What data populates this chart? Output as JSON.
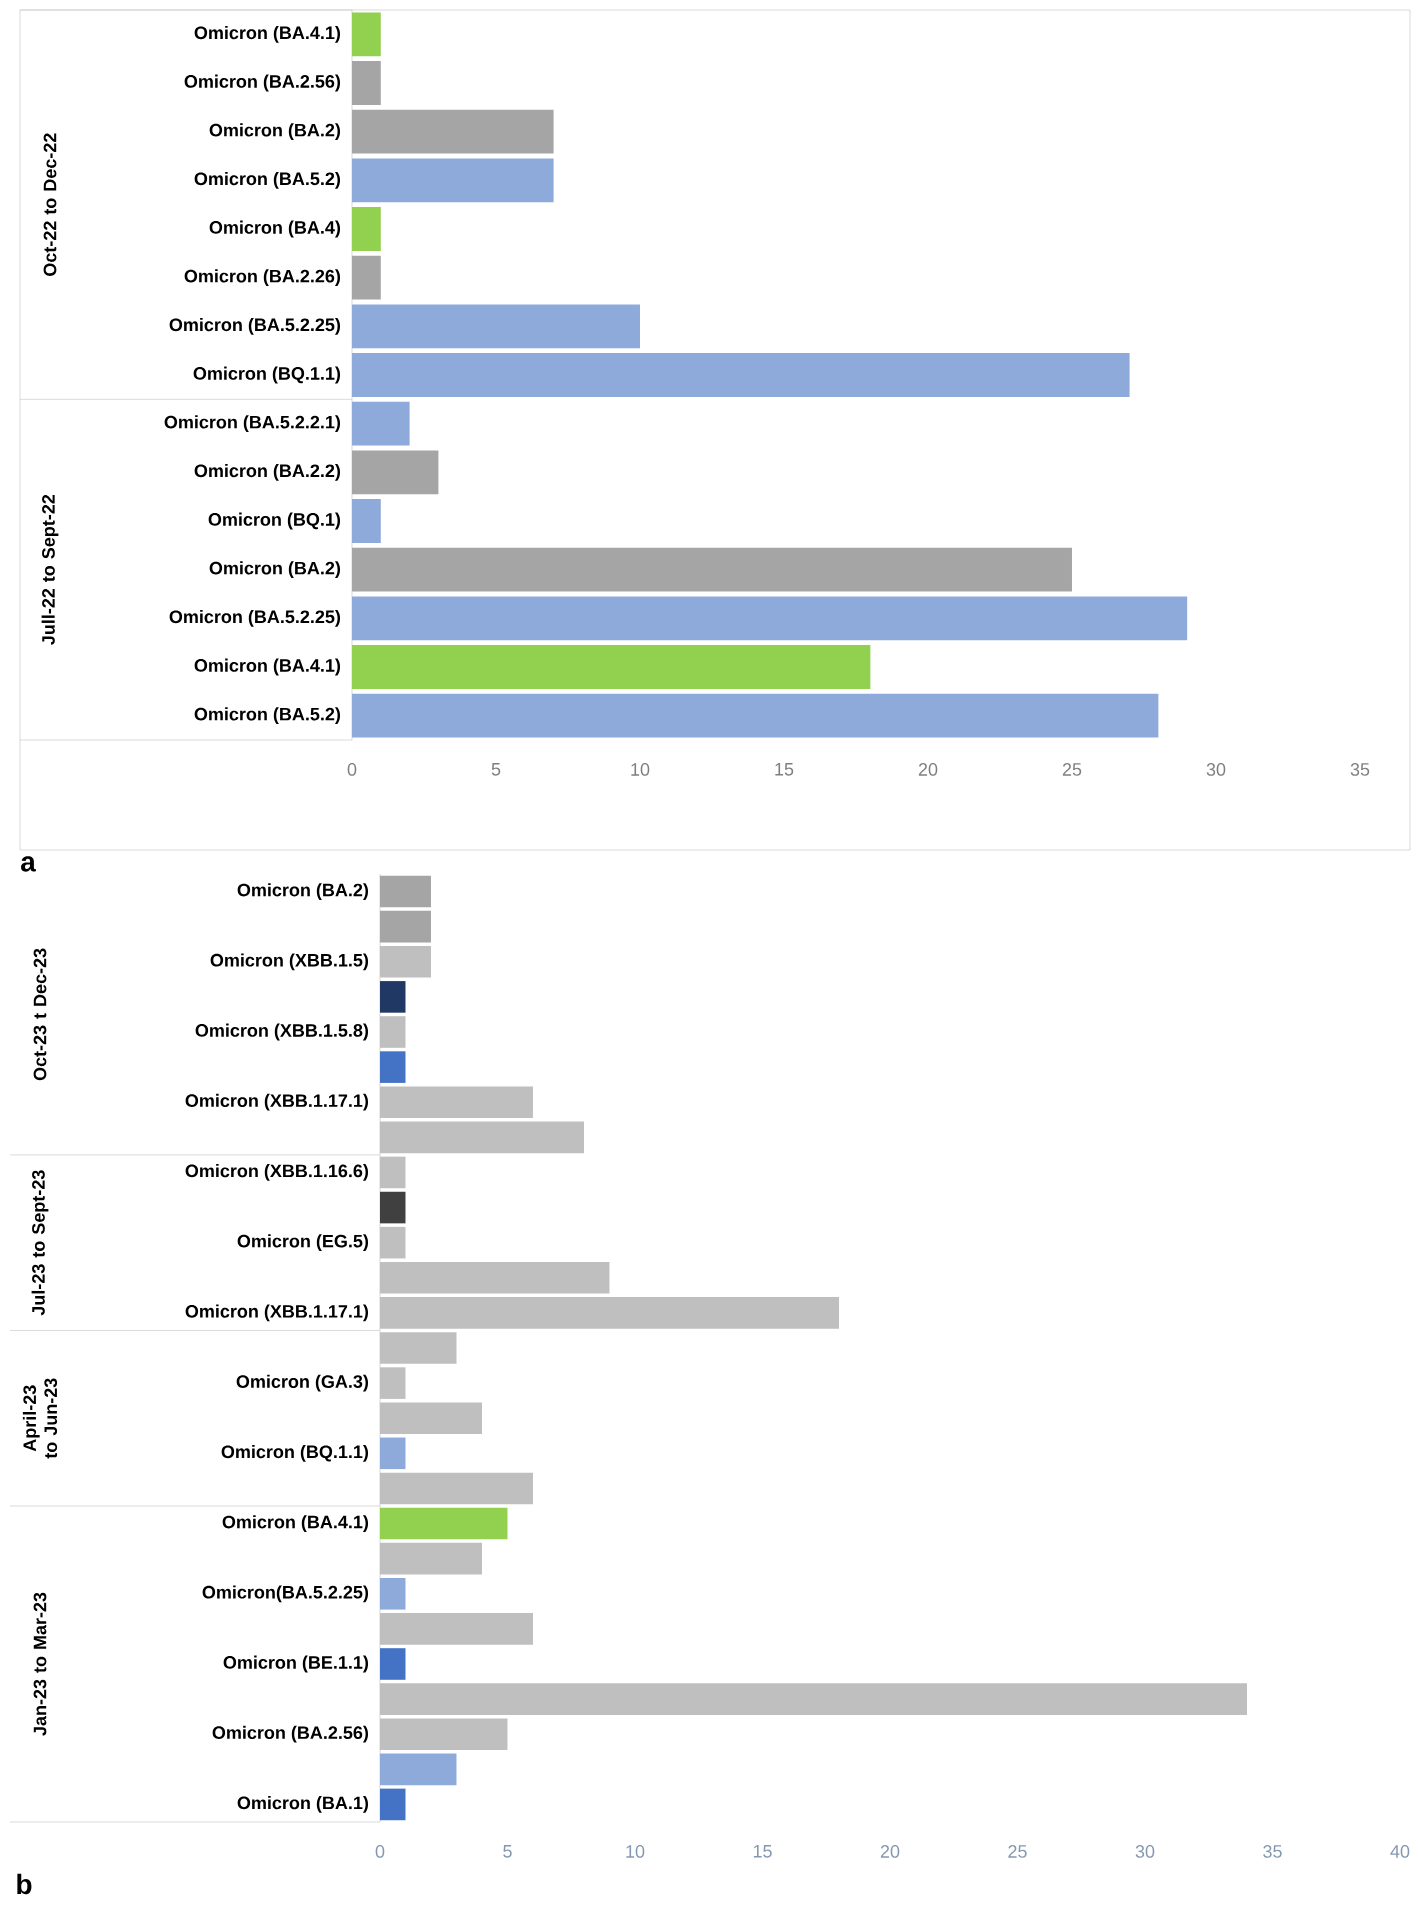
{
  "chart_data": [
    {
      "type": "bar",
      "orientation": "horizontal",
      "categories": [
        "Omicron (BA.4.1)",
        "Omicron (BA.2.56)",
        "Omicron (BA.2)",
        "Omicron (BA.5.2)",
        "Omicron (BA.4)",
        "Omicron (BA.2.26)",
        "Omicron (BA.5.2.25)",
        "Omicron (BQ.1.1)",
        "Omicron (BA.5.2.2.1)",
        "Omicron (BA.2.2)",
        "Omicron (BQ.1)",
        "Omicron (BA.2)",
        "Omicron (BA.5.2.25)",
        "Omicron (BA.4.1)",
        "Omicron (BA.5.2)"
      ],
      "values": [
        1,
        1,
        7,
        7,
        1,
        1,
        10,
        27,
        2,
        3,
        1,
        25,
        29,
        18,
        28
      ],
      "colors": [
        "#92d050",
        "#a5a5a5",
        "#a5a5a5",
        "#8eaadb",
        "#92d050",
        "#a5a5a5",
        "#8eaadb",
        "#8eaadb",
        "#8eaadb",
        "#a5a5a5",
        "#8eaadb",
        "#a5a5a5",
        "#8eaadb",
        "#92d050",
        "#8eaadb"
      ],
      "xlim": [
        0,
        35
      ],
      "xticks": [
        0,
        5,
        10,
        15,
        20,
        25,
        30,
        35
      ],
      "annotations": [
        "Oct-22 to Dec-22",
        "Jull-22 to Sept-22",
        "a"
      ]
    },
    {
      "type": "bar",
      "orientation": "horizontal",
      "categories": [
        "Omicron (BA.2)",
        null,
        "Omicron (XBB.1.5)",
        null,
        "Omicron (XBB.1.5.8)",
        null,
        "Omicron (XBB.1.17.1)",
        null,
        "Omicron (XBB.1.16.6)",
        null,
        "Omicron (EG.5)",
        null,
        "Omicron (XBB.1.17.1)",
        null,
        "Omicron (GA.3)",
        null,
        "Omicron (BQ.1.1)",
        null,
        "Omicron (BA.4.1)",
        null,
        "Omicron(BA.5.2.25)",
        null,
        "Omicron (BE.1.1)",
        null,
        "Omicron (BA.2.56)",
        null,
        "Omicron (BA.1)"
      ],
      "values": [
        2,
        2,
        2,
        1,
        1,
        1,
        6,
        8,
        1,
        1,
        1,
        9,
        18,
        3,
        1,
        4,
        1,
        6,
        5,
        4,
        1,
        6,
        1,
        34,
        5,
        3,
        1
      ],
      "colors": [
        "#a5a5a5",
        "#a5a5a5",
        "#bfbfbf",
        "#203864",
        "#bfbfbf",
        "#4472c4",
        "#bfbfbf",
        "#bfbfbf",
        "#bfbfbf",
        "#404040",
        "#bfbfbf",
        "#bfbfbf",
        "#bfbfbf",
        "#bfbfbf",
        "#bfbfbf",
        "#bfbfbf",
        "#8eaadb",
        "#bfbfbf",
        "#92d050",
        "#bfbfbf",
        "#8eaadb",
        "#bfbfbf",
        "#4472c4",
        "#bfbfbf",
        "#bfbfbf",
        "#8eaadb",
        "#4472c4"
      ],
      "xlim": [
        0,
        40
      ],
      "xticks": [
        0,
        5,
        10,
        15,
        20,
        25,
        30,
        35,
        40
      ],
      "annotations": [
        "Oct-23 t Dec-23",
        "Jul-23 to Sept-23",
        "April-23 to Jun-23",
        "Jan-23 to Mar-23",
        "b"
      ]
    }
  ]
}
